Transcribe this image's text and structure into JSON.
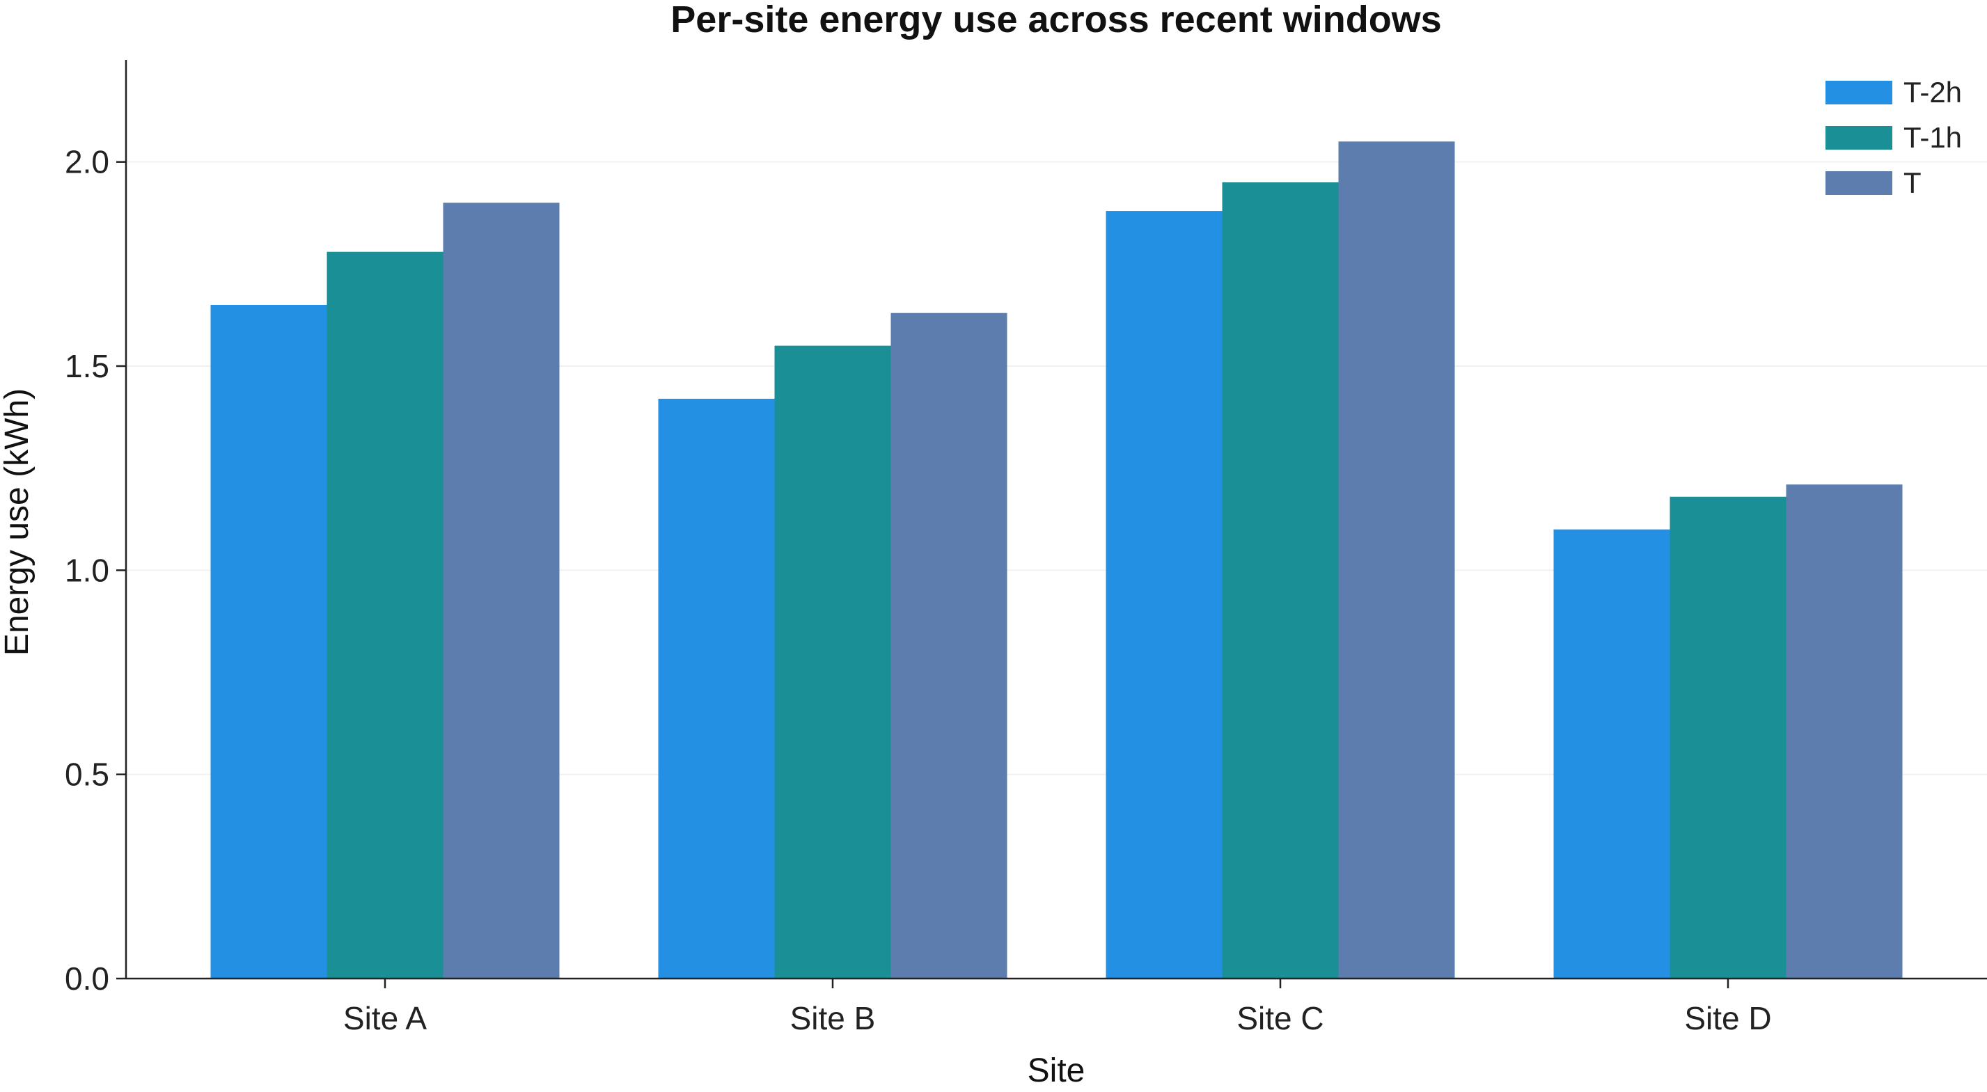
{
  "chart_data": {
    "type": "bar",
    "title": "Per-site energy use across recent windows",
    "xlabel": "Site",
    "ylabel": "Energy use (kWh)",
    "categories": [
      "Site A",
      "Site B",
      "Site C",
      "Site D"
    ],
    "series": [
      {
        "name": "T-2h",
        "color": "#2490e3",
        "values": [
          1.65,
          1.42,
          1.88,
          1.1
        ]
      },
      {
        "name": "T-1h",
        "color": "#1b8f96",
        "values": [
          1.78,
          1.55,
          1.95,
          1.18
        ]
      },
      {
        "name": "T",
        "color": "#5d7dae",
        "values": [
          1.9,
          1.63,
          2.05,
          1.21
        ]
      }
    ],
    "ylim": [
      0,
      2.25
    ],
    "yticks": [
      "0.0",
      "0.5",
      "1.0",
      "1.5",
      "2.0"
    ],
    "grid": true,
    "legend_position": "top-right"
  }
}
